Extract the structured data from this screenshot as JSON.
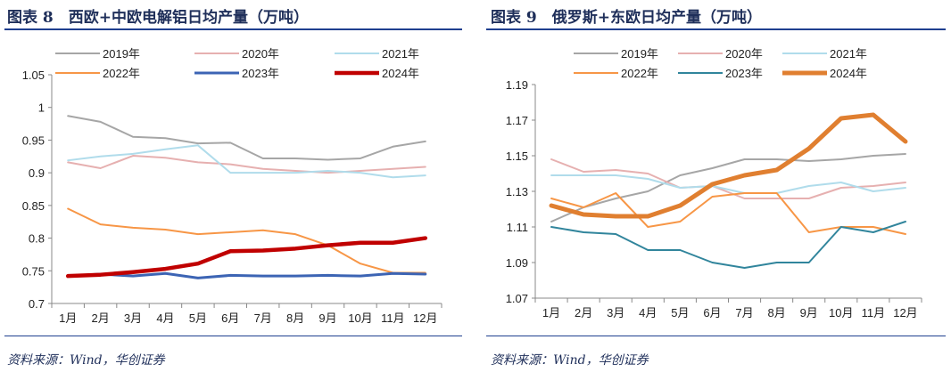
{
  "chart_data": [
    {
      "type": "line",
      "title": "图表 8　西欧+中欧电解铝日均产量（万吨）",
      "source": "资料来源：Wind，华创证券",
      "categories": [
        "1月",
        "2月",
        "3月",
        "4月",
        "5月",
        "6月",
        "7月",
        "8月",
        "9月",
        "10月",
        "11月",
        "12月"
      ],
      "ylim": [
        0.7,
        1.05
      ],
      "yticks": [
        "0.7",
        "0.75",
        "0.8",
        "0.85",
        "0.9",
        "0.95",
        "1",
        "1.05"
      ],
      "grid": false,
      "legend": "top",
      "series": [
        {
          "name": "2019年",
          "color": "#a6a6a6",
          "values": [
            0.987,
            0.978,
            0.955,
            0.953,
            0.945,
            0.946,
            0.922,
            0.922,
            0.92,
            0.922,
            0.94,
            0.948
          ]
        },
        {
          "name": "2020年",
          "color": "#e6b0b0",
          "values": [
            0.916,
            0.907,
            0.926,
            0.923,
            0.916,
            0.913,
            0.906,
            0.903,
            0.9,
            0.903,
            0.906,
            0.909
          ]
        },
        {
          "name": "2021年",
          "color": "#b0dceb",
          "values": [
            0.919,
            0.925,
            0.929,
            0.936,
            0.942,
            0.9,
            0.9,
            0.9,
            0.903,
            0.9,
            0.893,
            0.896
          ]
        },
        {
          "name": "2022年",
          "color": "#f79646",
          "values": [
            0.845,
            0.821,
            0.816,
            0.813,
            0.806,
            0.809,
            0.812,
            0.806,
            0.789,
            0.761,
            0.747,
            0.747
          ]
        },
        {
          "name": "2023年",
          "color": "#3c64b4",
          "values": [
            0.742,
            0.745,
            0.742,
            0.746,
            0.739,
            0.743,
            0.742,
            0.742,
            0.743,
            0.742,
            0.746,
            0.745
          ]
        },
        {
          "name": "2024年",
          "color": "#c00000",
          "values": [
            0.742,
            0.744,
            0.748,
            0.753,
            0.761,
            0.78,
            0.781,
            0.784,
            0.789,
            0.793,
            0.793,
            0.8
          ]
        }
      ]
    },
    {
      "type": "line",
      "title": "图表 9　俄罗斯+东欧日均产量（万吨）",
      "source": "资料来源：Wind，华创证券",
      "categories": [
        "1月",
        "2月",
        "3月",
        "4月",
        "5月",
        "6月",
        "7月",
        "8月",
        "9月",
        "10月",
        "11月",
        "12月"
      ],
      "ylim": [
        1.07,
        1.19
      ],
      "yticks": [
        "1.07",
        "1.09",
        "1.11",
        "1.13",
        "1.15",
        "1.17",
        "1.19"
      ],
      "grid": false,
      "legend": "top",
      "series": [
        {
          "name": "2019年",
          "color": "#a6a6a6",
          "values": [
            1.113,
            1.121,
            1.126,
            1.13,
            1.139,
            1.143,
            1.148,
            1.148,
            1.147,
            1.148,
            1.15,
            1.151
          ]
        },
        {
          "name": "2020年",
          "color": "#e6b0b0",
          "values": [
            1.148,
            1.141,
            1.142,
            1.14,
            1.132,
            1.133,
            1.126,
            1.126,
            1.126,
            1.132,
            1.133,
            1.135
          ]
        },
        {
          "name": "2021年",
          "color": "#b0dceb",
          "values": [
            1.139,
            1.139,
            1.139,
            1.137,
            1.132,
            1.133,
            1.129,
            1.129,
            1.133,
            1.135,
            1.13,
            1.132
          ]
        },
        {
          "name": "2022年",
          "color": "#f79646",
          "values": [
            1.126,
            1.121,
            1.129,
            1.11,
            1.113,
            1.127,
            1.129,
            1.129,
            1.107,
            1.11,
            1.11,
            1.106
          ]
        },
        {
          "name": "2023年",
          "color": "#31859c",
          "values": [
            1.11,
            1.107,
            1.106,
            1.097,
            1.097,
            1.09,
            1.087,
            1.09,
            1.09,
            1.11,
            1.107,
            1.113
          ]
        },
        {
          "name": "2024年",
          "color": "#e07f30",
          "values": [
            1.122,
            1.117,
            1.116,
            1.116,
            1.122,
            1.134,
            1.139,
            1.142,
            1.154,
            1.171,
            1.173,
            1.158
          ]
        }
      ]
    }
  ]
}
